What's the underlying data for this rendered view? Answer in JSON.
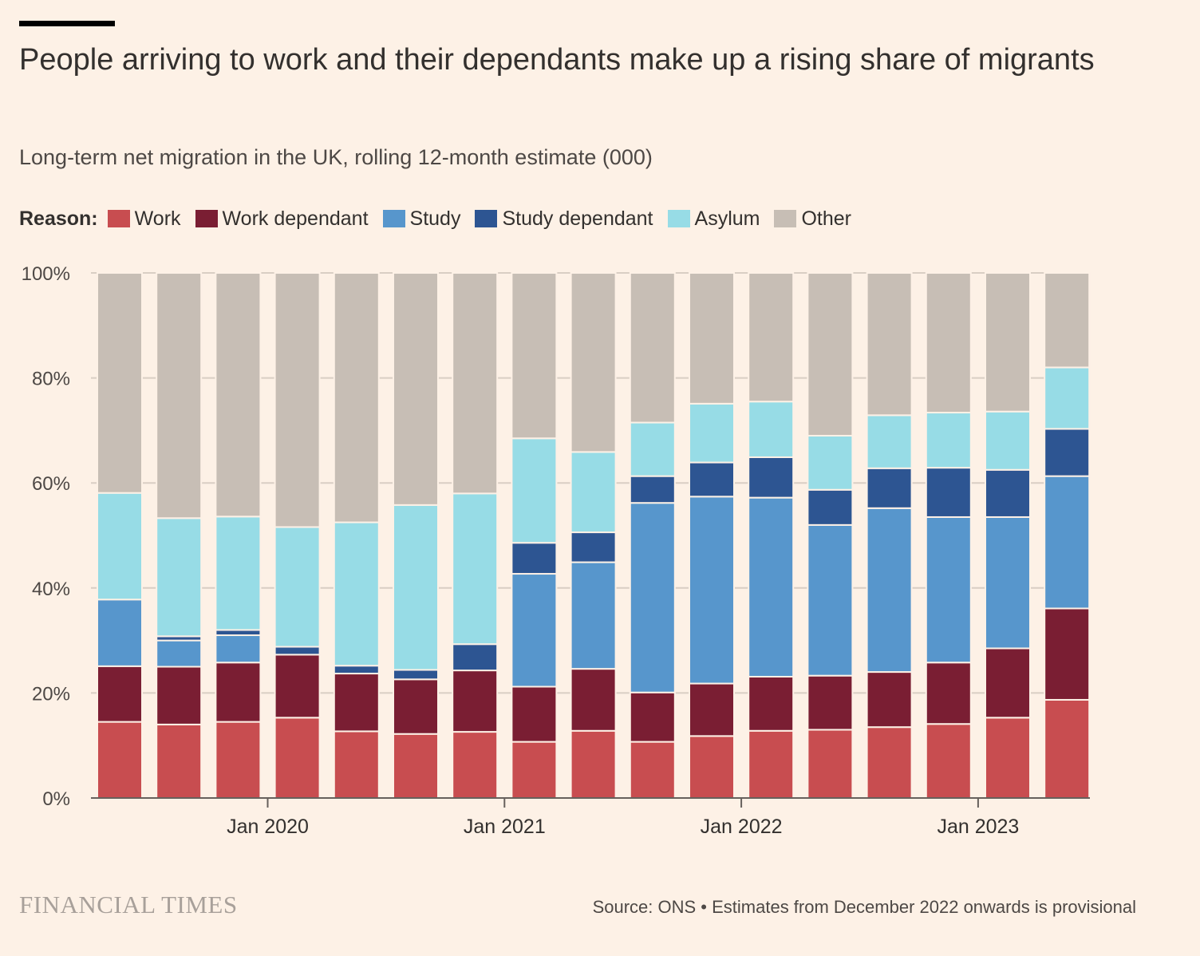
{
  "title": "People arriving to work and their dependants make up a rising share of migrants",
  "subtitle": "Long-term net migration in the UK, rolling 12-month estimate (000)",
  "legend": {
    "label": "Reason:",
    "items": [
      {
        "name": "Work",
        "color": "#C84D50"
      },
      {
        "name": "Work dependant",
        "color": "#7A1E33"
      },
      {
        "name": "Study",
        "color": "#5796CC"
      },
      {
        "name": "Study dependant",
        "color": "#2D5592"
      },
      {
        "name": "Asylum",
        "color": "#97DCE6"
      },
      {
        "name": "Other",
        "color": "#C7BEB5"
      }
    ]
  },
  "chart_data": {
    "type": "bar",
    "stacked": true,
    "ylim": [
      0,
      100
    ],
    "yticks": [
      "0%",
      "20%",
      "40%",
      "60%",
      "80%",
      "100%"
    ],
    "xtick_labels": [
      {
        "label": "Jan 2020",
        "after_bar": 3
      },
      {
        "label": "Jan 2021",
        "after_bar": 7
      },
      {
        "label": "Jan 2022",
        "after_bar": 11
      },
      {
        "label": "Jan 2023",
        "after_bar": 15
      }
    ],
    "series": [
      {
        "name": "Work",
        "color": "#C84D50",
        "values": [
          14.5,
          14,
          14.5,
          15.3,
          12.7,
          12.2,
          12.6,
          10.7,
          12.8,
          10.7,
          11.8,
          12.8,
          13,
          13.5,
          14.1,
          15.3,
          18.7
        ]
      },
      {
        "name": "Work dependant",
        "color": "#7A1E33",
        "values": [
          10.6,
          11,
          11.3,
          12,
          11,
          10.4,
          11.7,
          10.5,
          11.8,
          9.4,
          10,
          10.3,
          10.3,
          10.5,
          11.7,
          13.2,
          17.4
        ]
      },
      {
        "name": "Study",
        "color": "#5796CC",
        "values": [
          12.7,
          5,
          5.2,
          0,
          0,
          0,
          0,
          21.5,
          20.3,
          36.1,
          35.6,
          34.1,
          28.7,
          31.2,
          27.7,
          25,
          25.2
        ]
      },
      {
        "name": "Study dependant",
        "color": "#2D5592",
        "values": [
          0,
          0.8,
          1,
          1.5,
          1.5,
          1.8,
          5,
          5.9,
          5.7,
          5.1,
          6.5,
          7.7,
          6.7,
          7.6,
          9.4,
          9,
          9
        ]
      },
      {
        "name": "Asylum",
        "color": "#97DCE6",
        "values": [
          20.3,
          22.5,
          21.6,
          22.8,
          27.3,
          31.4,
          28.7,
          19.9,
          15.3,
          10.2,
          11.2,
          10.6,
          10.3,
          10.1,
          10.5,
          11.1,
          11.7
        ]
      },
      {
        "name": "Other",
        "color": "#C7BEB5",
        "values": [
          41.9,
          46.7,
          46.4,
          48.4,
          47.5,
          44.2,
          42,
          31.5,
          34.1,
          28.5,
          24.9,
          24.5,
          31,
          27.1,
          26.6,
          26.4,
          18
        ]
      }
    ]
  },
  "footer": {
    "logo": "FINANCIAL TIMES",
    "source": "Source: ONS • Estimates from December 2022 onwards is provisional"
  }
}
